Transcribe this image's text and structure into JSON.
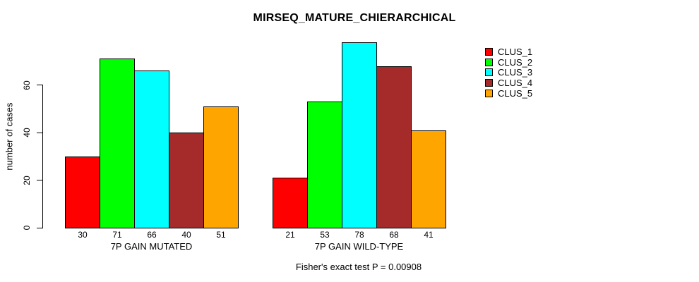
{
  "chart_data": {
    "type": "bar",
    "title": "MIRSEQ_MATURE_CHIERARCHICAL",
    "ylabel": "number of cases",
    "xlabel": "",
    "yticks": [
      0,
      20,
      40,
      60
    ],
    "ylim": [
      0,
      81
    ],
    "grid": false,
    "legend_position": "right",
    "bar_value_labels": true,
    "categories": [
      "7P GAIN MUTATED",
      "7P GAIN WILD-TYPE"
    ],
    "series": [
      {
        "name": "CLUS_1",
        "color": "#ff0000",
        "values": [
          30,
          21
        ]
      },
      {
        "name": "CLUS_2",
        "color": "#00ff00",
        "values": [
          71,
          53
        ]
      },
      {
        "name": "CLUS_3",
        "color": "#00ffff",
        "values": [
          66,
          78
        ]
      },
      {
        "name": "CLUS_4",
        "color": "#a52a2a",
        "values": [
          40,
          68
        ]
      },
      {
        "name": "CLUS_5",
        "color": "#ffa500",
        "values": [
          51,
          41
        ]
      }
    ],
    "annotation": "Fisher's exact test P = 0.00908",
    "axis_color": "#000000",
    "background_color": "#ffffff"
  }
}
